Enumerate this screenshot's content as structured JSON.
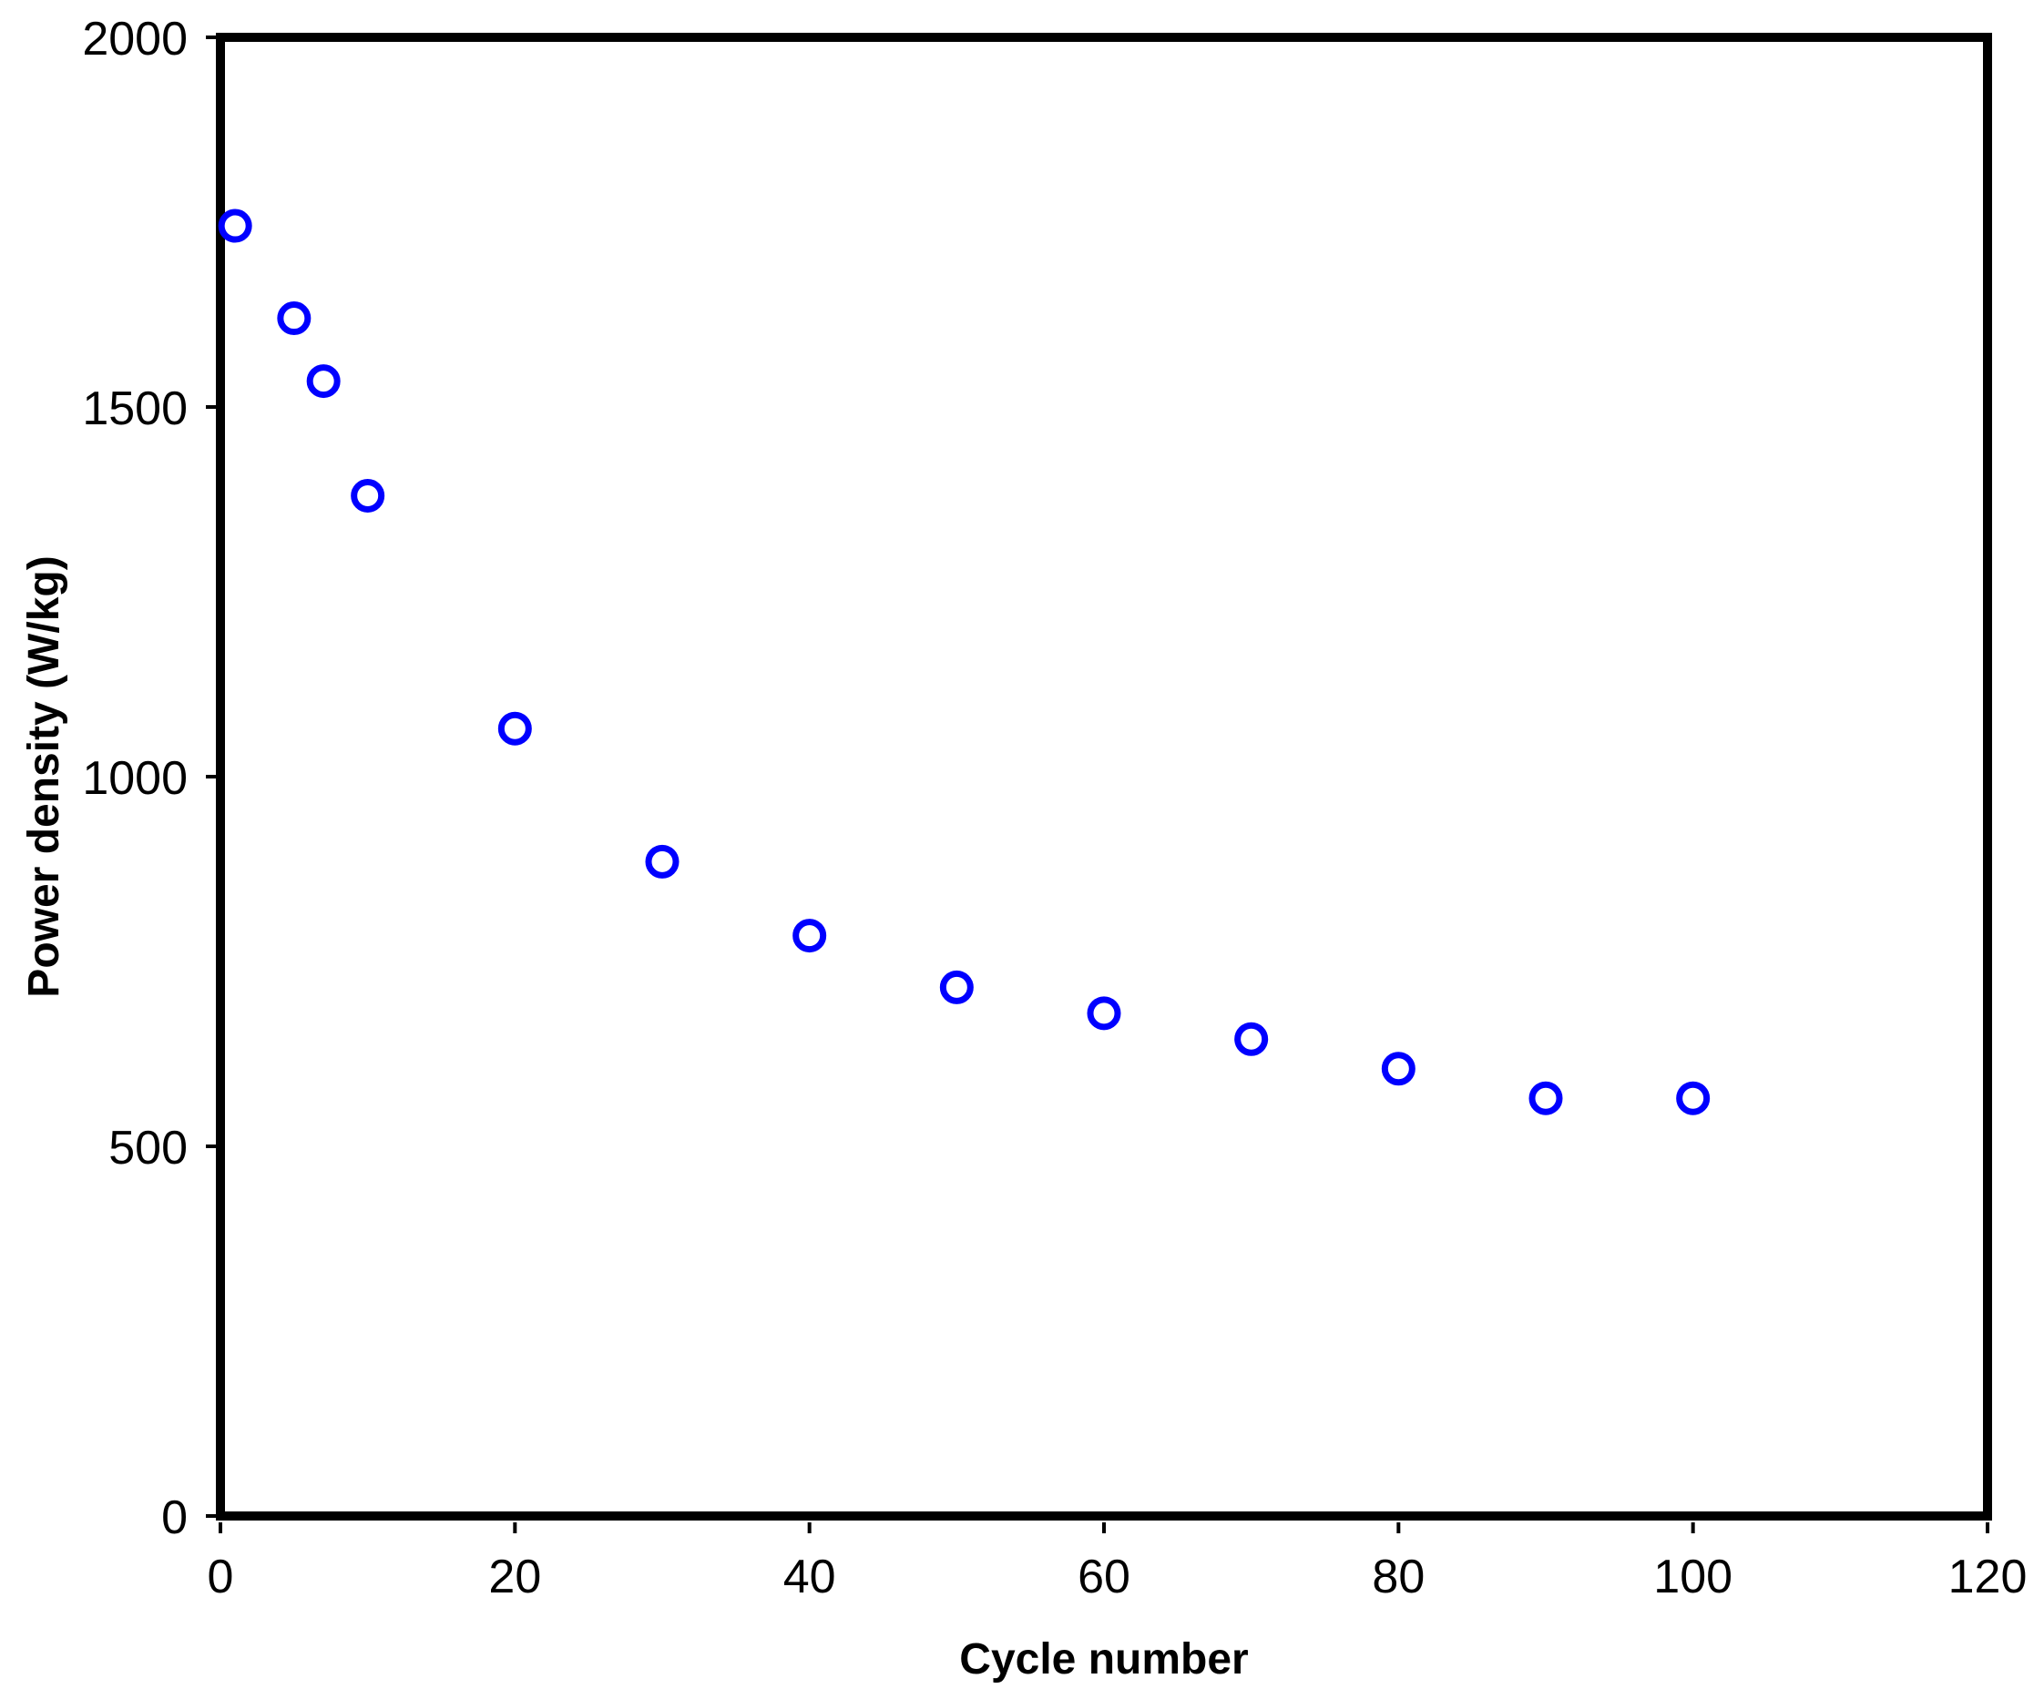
{
  "page": {
    "background": "#FFFFFF",
    "axis_color": "#000000"
  },
  "chart_data": {
    "type": "scatter",
    "title": "",
    "xlabel": "Cycle number",
    "ylabel": "Power density (W/kg)",
    "xlim": [
      0,
      120
    ],
    "ylim": [
      0,
      2000
    ],
    "x_ticks": [
      0,
      20,
      40,
      60,
      80,
      100,
      120
    ],
    "y_ticks": [
      0,
      500,
      1000,
      1500,
      2000
    ],
    "grid": false,
    "legend": "none",
    "frame": "full-box",
    "series": [
      {
        "name": "Power density",
        "marker": "open-circle",
        "marker_color": "#0000FF",
        "x": [
          1,
          5,
          7,
          10,
          20,
          30,
          40,
          50,
          60,
          70,
          80,
          90,
          100
        ],
        "y": [
          1745,
          1620,
          1535,
          1380,
          1065,
          885,
          785,
          715,
          680,
          645,
          605,
          565,
          565
        ]
      }
    ]
  }
}
